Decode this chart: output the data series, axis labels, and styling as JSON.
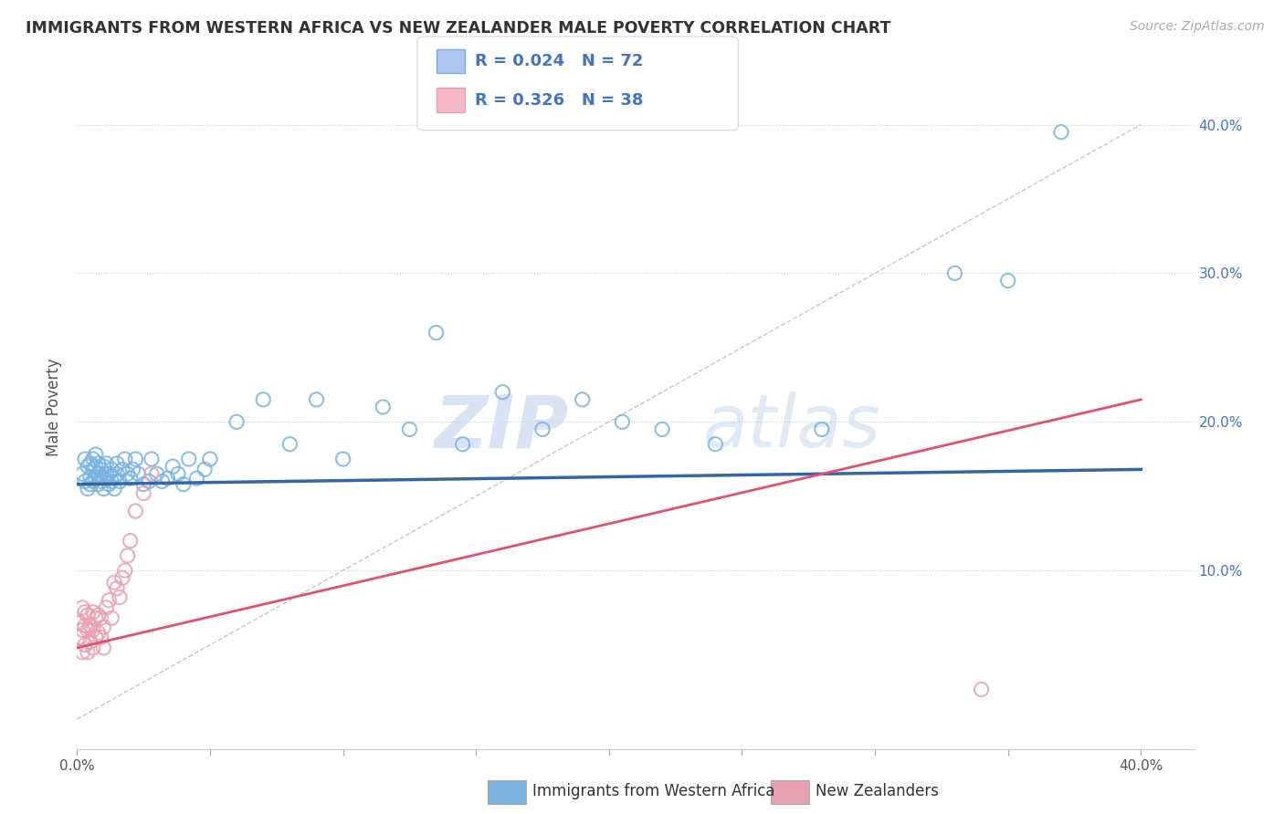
{
  "title": "IMMIGRANTS FROM WESTERN AFRICA VS NEW ZEALANDER MALE POVERTY CORRELATION CHART",
  "source": "Source: ZipAtlas.com",
  "ylabel": "Male Poverty",
  "xlim": [
    0.0,
    0.42
  ],
  "ylim": [
    -0.02,
    0.44
  ],
  "xtick_vals": [
    0.0,
    0.05,
    0.1,
    0.15,
    0.2,
    0.25,
    0.3,
    0.35,
    0.4
  ],
  "xtick_labels_show": {
    "0.0": "0.0%",
    "0.40": "40.0%"
  },
  "ytick_vals": [
    0.1,
    0.2,
    0.3,
    0.4
  ],
  "ytick_labels": [
    "10.0%",
    "20.0%",
    "30.0%",
    "40.0%"
  ],
  "grid_ytick_vals": [
    0.1,
    0.2,
    0.3,
    0.4
  ],
  "legend_entries": [
    {
      "label_r": "R = 0.024",
      "label_n": "N = 72",
      "color": "#aec6ef",
      "border": "#7aabdc"
    },
    {
      "label_r": "R = 0.326",
      "label_n": "N = 38",
      "color": "#f4b8c8",
      "border": "#e8a0b4"
    }
  ],
  "scatter_blue_x": [
    0.002,
    0.003,
    0.003,
    0.004,
    0.004,
    0.005,
    0.005,
    0.005,
    0.006,
    0.006,
    0.006,
    0.007,
    0.007,
    0.007,
    0.008,
    0.008,
    0.008,
    0.009,
    0.009,
    0.01,
    0.01,
    0.01,
    0.011,
    0.011,
    0.012,
    0.012,
    0.013,
    0.013,
    0.014,
    0.014,
    0.015,
    0.015,
    0.016,
    0.017,
    0.018,
    0.019,
    0.02,
    0.021,
    0.022,
    0.023,
    0.025,
    0.027,
    0.028,
    0.03,
    0.032,
    0.034,
    0.036,
    0.038,
    0.04,
    0.042,
    0.045,
    0.048,
    0.05,
    0.06,
    0.07,
    0.08,
    0.09,
    0.1,
    0.115,
    0.125,
    0.135,
    0.145,
    0.16,
    0.175,
    0.19,
    0.205,
    0.22,
    0.24,
    0.28,
    0.33,
    0.35,
    0.37
  ],
  "scatter_blue_y": [
    0.165,
    0.16,
    0.175,
    0.155,
    0.17,
    0.158,
    0.163,
    0.172,
    0.16,
    0.168,
    0.175,
    0.162,
    0.17,
    0.178,
    0.158,
    0.165,
    0.172,
    0.16,
    0.168,
    0.155,
    0.162,
    0.17,
    0.165,
    0.172,
    0.158,
    0.165,
    0.16,
    0.168,
    0.155,
    0.162,
    0.165,
    0.172,
    0.16,
    0.168,
    0.175,
    0.165,
    0.162,
    0.168,
    0.175,
    0.165,
    0.158,
    0.16,
    0.175,
    0.165,
    0.16,
    0.162,
    0.17,
    0.165,
    0.158,
    0.175,
    0.162,
    0.168,
    0.175,
    0.2,
    0.215,
    0.185,
    0.215,
    0.175,
    0.21,
    0.195,
    0.26,
    0.185,
    0.22,
    0.195,
    0.215,
    0.2,
    0.195,
    0.185,
    0.195,
    0.3,
    0.295,
    0.395
  ],
  "scatter_pink_x": [
    0.001,
    0.001,
    0.002,
    0.002,
    0.002,
    0.003,
    0.003,
    0.003,
    0.004,
    0.004,
    0.004,
    0.005,
    0.005,
    0.006,
    0.006,
    0.006,
    0.007,
    0.007,
    0.008,
    0.008,
    0.009,
    0.009,
    0.01,
    0.01,
    0.011,
    0.012,
    0.013,
    0.014,
    0.015,
    0.016,
    0.017,
    0.018,
    0.019,
    0.02,
    0.022,
    0.025,
    0.028,
    0.34
  ],
  "scatter_pink_y": [
    0.055,
    0.065,
    0.045,
    0.06,
    0.075,
    0.05,
    0.063,
    0.072,
    0.045,
    0.06,
    0.07,
    0.052,
    0.063,
    0.048,
    0.06,
    0.072,
    0.055,
    0.068,
    0.058,
    0.07,
    0.055,
    0.068,
    0.048,
    0.062,
    0.075,
    0.08,
    0.068,
    0.092,
    0.088,
    0.082,
    0.095,
    0.1,
    0.11,
    0.12,
    0.14,
    0.152,
    0.165,
    0.02
  ],
  "blue_line_x": [
    0.0,
    0.4
  ],
  "blue_line_y": [
    0.158,
    0.168
  ],
  "pink_line_x": [
    0.0,
    0.4
  ],
  "pink_line_y": [
    0.048,
    0.215
  ],
  "diag_line_x": [
    0.0,
    0.4
  ],
  "diag_line_y": [
    0.0,
    0.4
  ],
  "watermark_zip": "ZIP",
  "watermark_atlas": "atlas",
  "bg_color": "#ffffff",
  "grid_color": "#cccccc",
  "scatter_blue_color": "#7ab3e0",
  "scatter_pink_color": "#e8a0b0",
  "blue_line_color": "#3465a4",
  "pink_line_color": "#e05070",
  "diag_line_color": "#c8c8c8",
  "text_color": "#333333",
  "source_color": "#aaaaaa",
  "legend_text_color": "#4472c4"
}
